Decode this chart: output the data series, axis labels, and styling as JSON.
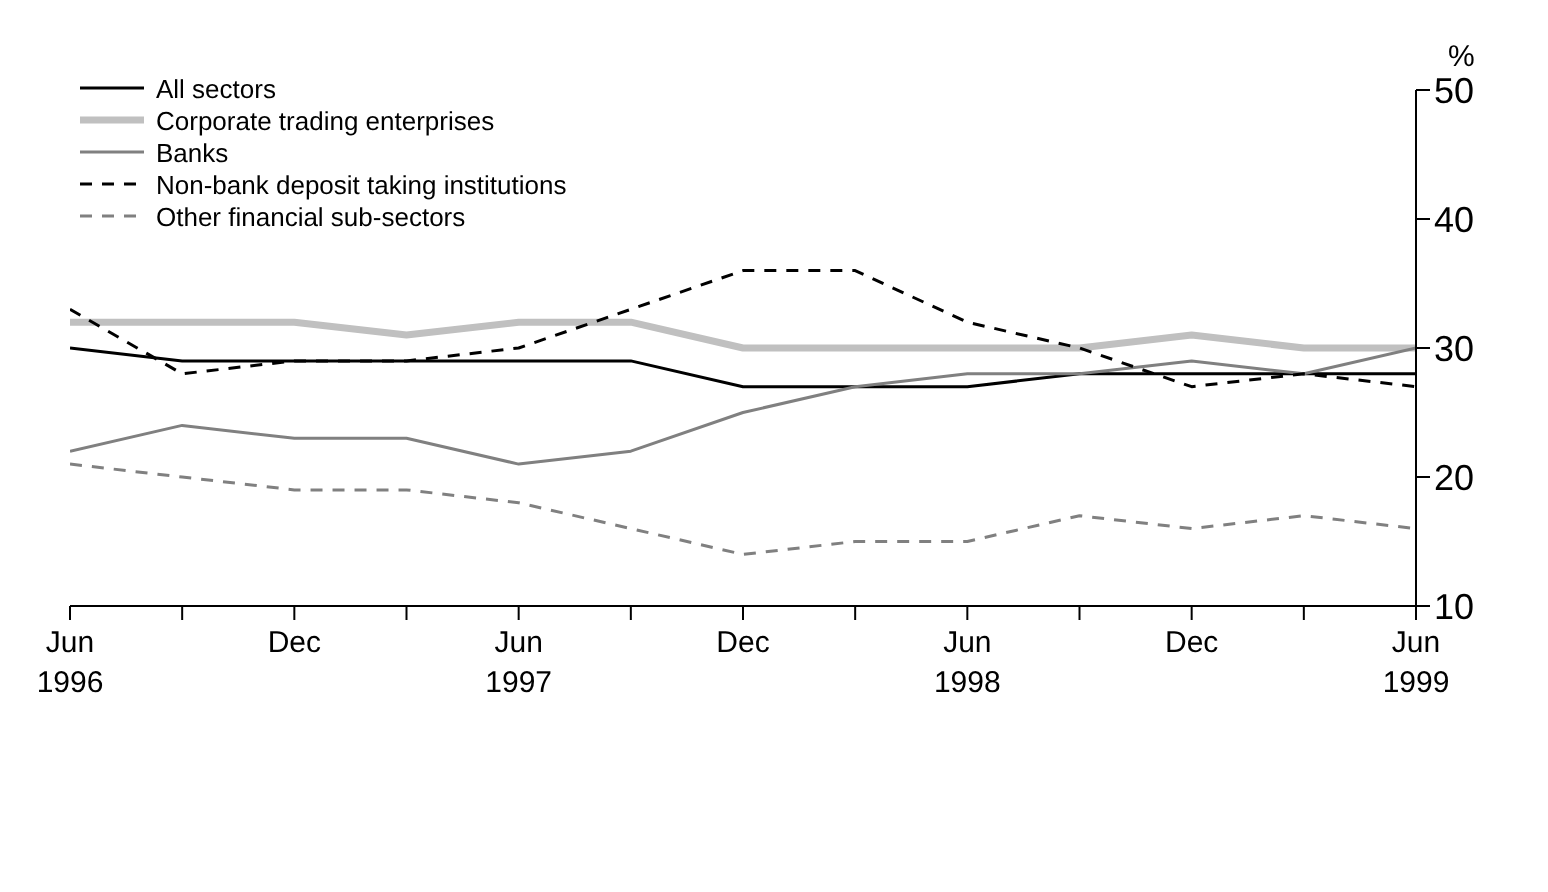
{
  "chart_data": {
    "type": "line",
    "ylabel": "%",
    "categories": [
      "Jun\n1996",
      null,
      "Dec",
      null,
      "Jun\n1997",
      null,
      "Dec",
      null,
      "Jun\n1998",
      null,
      "Dec",
      null,
      "Jun\n1999"
    ],
    "series": [
      {
        "name": "All sectors",
        "color": "#000000",
        "line_style": "solid",
        "values": [
          30,
          29,
          29,
          29,
          29,
          29,
          27,
          27,
          27,
          28,
          28,
          28,
          28
        ]
      },
      {
        "name": "Corporate trading enterprises",
        "color": "#c0c0c0",
        "line_style": "solid",
        "values": [
          32,
          32,
          32,
          31,
          32,
          32,
          30,
          30,
          30,
          30,
          31,
          30,
          30
        ]
      },
      {
        "name": "Banks",
        "color": "#808080",
        "line_style": "solid",
        "values": [
          22,
          24,
          23,
          23,
          21,
          22,
          25,
          27,
          28,
          28,
          29,
          28,
          30
        ]
      },
      {
        "name": "Non-bank deposit taking institutions",
        "color": "#000000",
        "line_style": "dashed",
        "values": [
          33,
          28,
          29,
          29,
          30,
          33,
          36,
          36,
          32,
          30,
          27,
          28,
          27
        ]
      },
      {
        "name": "Other financial sub-sectors",
        "color": "#808080",
        "line_style": "dashed",
        "values": [
          21,
          20,
          19,
          19,
          18,
          16,
          14,
          15,
          15,
          17,
          16,
          17,
          16
        ]
      }
    ],
    "ylim": [
      10,
      50
    ],
    "yticks": [
      10,
      20,
      30,
      40,
      50
    ],
    "grid": false,
    "legend": "top left",
    "marker": "none"
  }
}
